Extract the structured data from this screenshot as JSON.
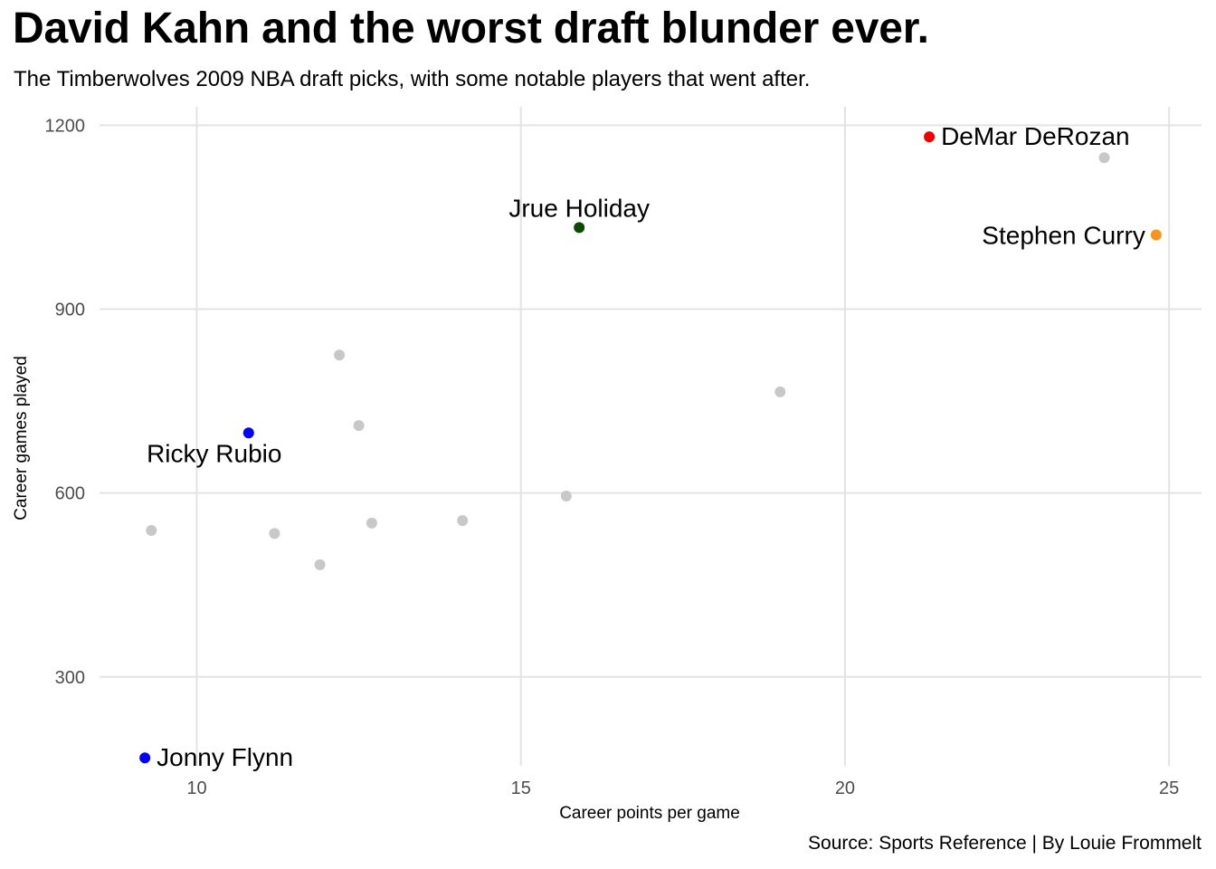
{
  "title": "David Kahn and the worst draft blunder ever.",
  "subtitle": "The Timberwolves 2009 NBA draft picks, with some notable players that went after.",
  "caption": "Source: Sports Reference | By Louie Frommelt",
  "chart_data": {
    "type": "scatter",
    "xlabel": "Career points per game",
    "ylabel": "Career games played",
    "xlim": [
      8.5,
      25.5
    ],
    "ylim": [
      155,
      1230
    ],
    "x_ticks": [
      10,
      15,
      20,
      25
    ],
    "y_ticks": [
      300,
      600,
      900,
      1200
    ],
    "grid": true,
    "points": [
      {
        "x": 9.2,
        "y": 168,
        "color": "#0000ff",
        "label": "Jonny Flynn",
        "label_pos": "right"
      },
      {
        "x": 10.8,
        "y": 698,
        "color": "#0000ff",
        "label": "Ricky Rubio",
        "label_pos": "below"
      },
      {
        "x": 15.9,
        "y": 1033,
        "color": "#0a4a00",
        "label": "Jrue Holiday",
        "label_pos": "above"
      },
      {
        "x": 21.3,
        "y": 1181,
        "color": "#ee0000",
        "label": "DeMar DeRozan",
        "label_pos": "right"
      },
      {
        "x": 24.8,
        "y": 1021,
        "color": "#f7941d",
        "label": "Stephen Curry",
        "label_pos": "left"
      },
      {
        "x": 9.3,
        "y": 539,
        "color": "#c8c8c8"
      },
      {
        "x": 11.2,
        "y": 534,
        "color": "#c8c8c8"
      },
      {
        "x": 11.9,
        "y": 483,
        "color": "#c8c8c8"
      },
      {
        "x": 12.2,
        "y": 825,
        "color": "#c8c8c8"
      },
      {
        "x": 12.5,
        "y": 710,
        "color": "#c8c8c8"
      },
      {
        "x": 12.7,
        "y": 551,
        "color": "#c8c8c8"
      },
      {
        "x": 14.1,
        "y": 555,
        "color": "#c8c8c8"
      },
      {
        "x": 15.7,
        "y": 595,
        "color": "#c8c8c8"
      },
      {
        "x": 19.0,
        "y": 765,
        "color": "#c8c8c8"
      },
      {
        "x": 24.0,
        "y": 1147,
        "color": "#c8c8c8"
      }
    ]
  }
}
